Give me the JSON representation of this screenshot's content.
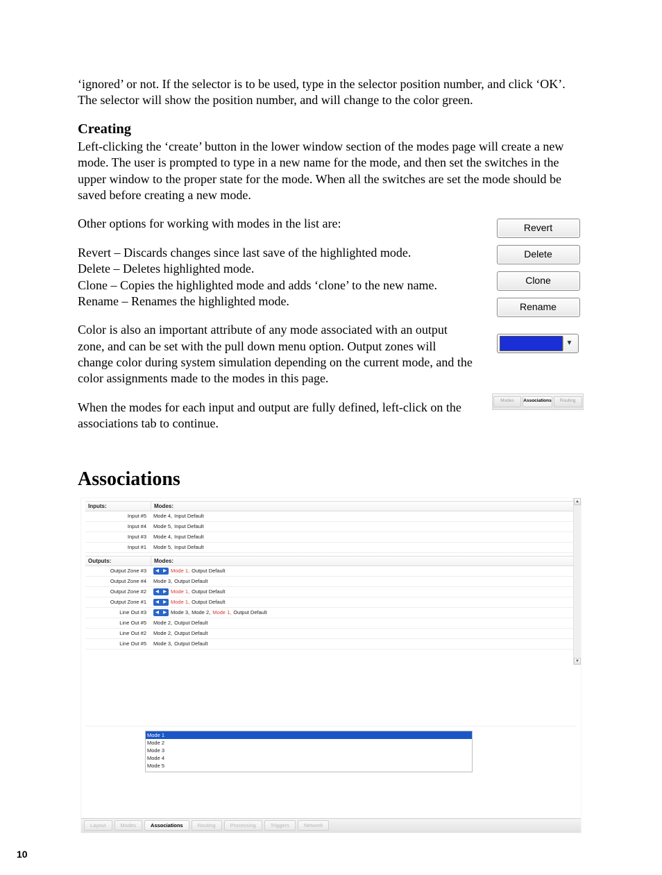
{
  "intro_text": "‘ignored’ or not.  If the selector is to be used, type in the selector position number, and click ‘OK’.  The selector will show the position number, and will change to the color green.",
  "creating": {
    "heading": "Creating",
    "p1": "Left-clicking the ‘create’ button in the lower window section of the modes page will create a new mode.  The user is prompted to type in a new name for the mode, and then set the switches in the upper window to the proper state for the mode.  When all the switches are set the mode should be saved before creating a new mode.",
    "p2": "Other options for working with modes in the list are:",
    "opts": {
      "revert": "Revert – Discards changes since last save of the highlighted mode.",
      "delete": "Delete – Deletes highlighted mode.",
      "clone": "Clone – Copies the highlighted mode and adds ‘clone’ to the new name.",
      "rename": "Rename – Renames the highlighted mode."
    },
    "p3": "Color is also an important attribute of any mode associated with an output zone, and can be set with the pull down menu option.  Output zones will change color during system simulation depending on the current mode, and the color assignments made to the modes in this page.",
    "p4": "When the modes for each input and output are fully defined, left-click on the associations tab to continue."
  },
  "sidebar_buttons": {
    "revert": "Revert",
    "delete": "Delete",
    "clone": "Clone",
    "rename": "Rename",
    "swatch_color": "#1a2fd6"
  },
  "mini_tabs": {
    "t1": "Modes",
    "t2": "Associations",
    "t3": "Routing"
  },
  "assoc_heading": "Associations",
  "assoc_table": {
    "headers": {
      "inputs": "Inputs:",
      "outputs": "Outputs:",
      "modes": "Modes:"
    },
    "inputs": [
      {
        "name": "Input #5",
        "modes": [
          {
            "t": "Mode 4,",
            "c": "plain"
          },
          {
            "t": "Input Default",
            "c": "plain"
          }
        ]
      },
      {
        "name": "Input #4",
        "modes": [
          {
            "t": "Mode 5,",
            "c": "plain"
          },
          {
            "t": "Input Default",
            "c": "plain"
          }
        ]
      },
      {
        "name": "Input #3",
        "modes": [
          {
            "t": "Mode 4,",
            "c": "plain"
          },
          {
            "t": "Input Default",
            "c": "plain"
          }
        ]
      },
      {
        "name": "Input #1",
        "modes": [
          {
            "t": "Mode 5,",
            "c": "plain"
          },
          {
            "t": "Input Default",
            "c": "plain"
          }
        ]
      }
    ],
    "outputs": [
      {
        "name": "Output Zone #3",
        "arrows": true,
        "modes": [
          {
            "t": "Mode 1,",
            "c": "red"
          },
          {
            "t": "Output Default",
            "c": "plain"
          }
        ]
      },
      {
        "name": "Output Zone #4",
        "arrows": false,
        "modes": [
          {
            "t": "Mode 3,",
            "c": "plain"
          },
          {
            "t": "Output Default",
            "c": "plain"
          }
        ]
      },
      {
        "name": "Output Zone #2",
        "arrows": true,
        "modes": [
          {
            "t": "Mode 1,",
            "c": "red"
          },
          {
            "t": "Output Default",
            "c": "plain"
          }
        ]
      },
      {
        "name": "Output Zone #1",
        "arrows": true,
        "modes": [
          {
            "t": "Mode 1,",
            "c": "red"
          },
          {
            "t": "Output Default",
            "c": "plain"
          }
        ]
      },
      {
        "name": "Line Out #3",
        "arrows": true,
        "modes": [
          {
            "t": "Mode 3,",
            "c": "plain"
          },
          {
            "t": "Mode 2,",
            "c": "plain"
          },
          {
            "t": "Mode 1,",
            "c": "red"
          },
          {
            "t": "Output Default",
            "c": "plain"
          }
        ]
      },
      {
        "name": "Line Out #5",
        "arrows": false,
        "modes": [
          {
            "t": "Mode 2,",
            "c": "plain"
          },
          {
            "t": "Output Default",
            "c": "plain"
          }
        ]
      },
      {
        "name": "Line Out #2",
        "arrows": false,
        "modes": [
          {
            "t": "Mode 2,",
            "c": "plain"
          },
          {
            "t": "Output Default",
            "c": "plain"
          }
        ]
      },
      {
        "name": "Line Out #5",
        "arrows": false,
        "modes": [
          {
            "t": "Mode 3,",
            "c": "plain"
          },
          {
            "t": "Output Default",
            "c": "plain"
          }
        ]
      }
    ],
    "listbox": {
      "selected": "Mode 1",
      "rest": [
        "Mode 2",
        "Mode 3",
        "Mode 4",
        "Mode 5"
      ]
    },
    "tabs": [
      "Layout",
      "Modes",
      "Associations",
      "Routing",
      "Processing",
      "Triggers",
      "Network"
    ],
    "active_tab": 2
  },
  "page_number": "10"
}
